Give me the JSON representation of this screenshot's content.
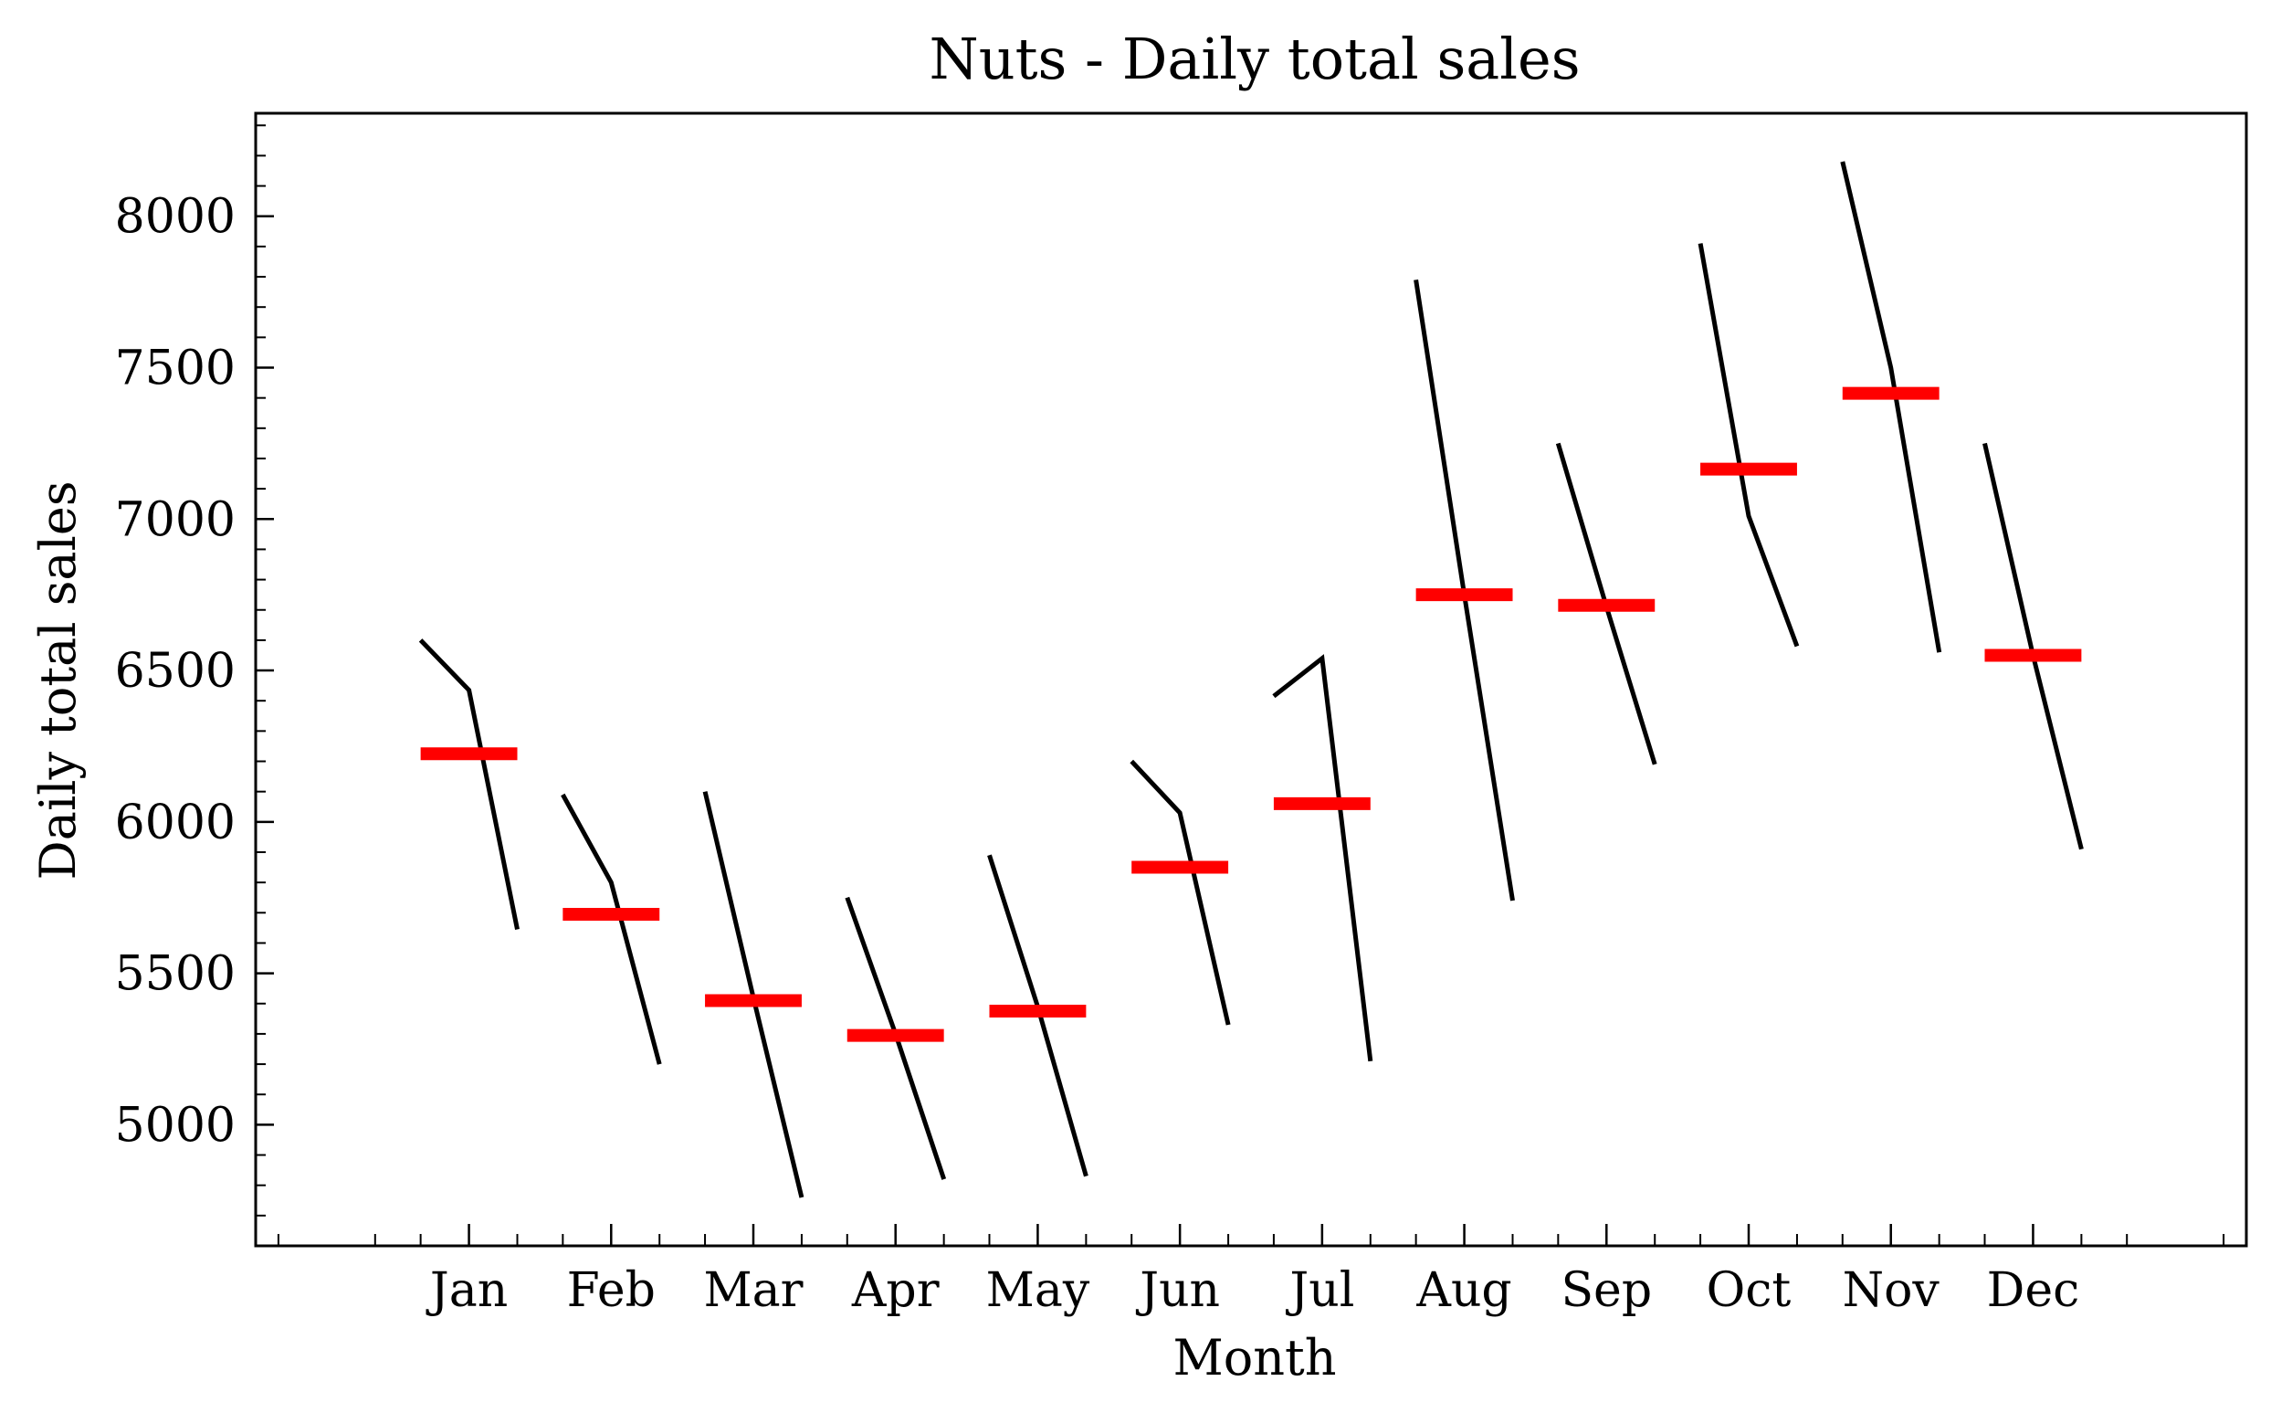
{
  "chart_data": {
    "type": "line",
    "title": "Nuts - Daily total sales",
    "xlabel": "Month",
    "ylabel": "Daily total sales",
    "categories": [
      "Jan",
      "Feb",
      "Mar",
      "Apr",
      "May",
      "Jun",
      "Jul",
      "Aug",
      "Sep",
      "Oct",
      "Nov",
      "Dec"
    ],
    "yticks": [
      5000,
      5500,
      6000,
      6500,
      7000,
      7500,
      8000
    ],
    "ylim": [
      4600,
      8340
    ],
    "grid": false,
    "legend": "none",
    "series": [
      {
        "values": [
          [
            6600,
            6435,
            5645
          ],
          [
            6090,
            5800,
            5200
          ],
          [
            6100,
            5420,
            4760
          ],
          [
            5750,
            5300,
            4820
          ],
          [
            5890,
            5390,
            4830
          ],
          [
            6200,
            6030,
            5330
          ],
          [
            6415,
            6540,
            5210
          ],
          [
            7790,
            6750,
            5740
          ],
          [
            7250,
            6710,
            6190
          ],
          [
            7910,
            7010,
            6580
          ],
          [
            8180,
            7500,
            6560
          ],
          [
            7250,
            6550,
            5910
          ]
        ]
      },
      {
        "values": [
          6225,
          5695,
          5410,
          5295,
          5375,
          5850,
          6060,
          6750,
          6715,
          7165,
          7415,
          6550
        ]
      }
    ],
    "colors": {
      "line": "#000000",
      "mean": "#ff0000"
    }
  }
}
